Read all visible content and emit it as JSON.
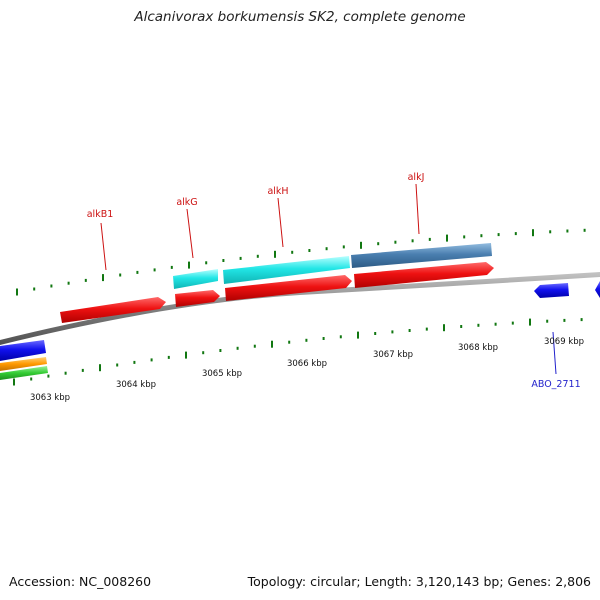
{
  "title": "Alcanivorax borkumensis SK2, complete genome",
  "footer": {
    "accession": "Accession: NC_008260",
    "summary": "Topology: circular; Length: 3,120,143 bp; Genes: 2,806"
  },
  "scale_labels": [
    "3063 kbp",
    "3064 kbp",
    "3065 kbp",
    "3066 kbp",
    "3067 kbp",
    "3068 kbp",
    "3069 kbp"
  ],
  "gene_labels": {
    "alkB1": "alkB1",
    "alkG": "alkG",
    "alkH": "alkH",
    "alkJ": "alkJ",
    "abo2711": "ABO_2711"
  },
  "colors": {
    "forward_cds": "#ee1111",
    "gene_highlight": "#22e6e6",
    "steel_feature": "#4a7fb0",
    "reverse_cds": "#1111ee",
    "orange_feature": "#ff9900",
    "green_feature": "#33cc33",
    "tick": "#117711",
    "backbone": "#808080",
    "forward_label": "#cc1111",
    "reverse_label": "#2222cc"
  }
}
